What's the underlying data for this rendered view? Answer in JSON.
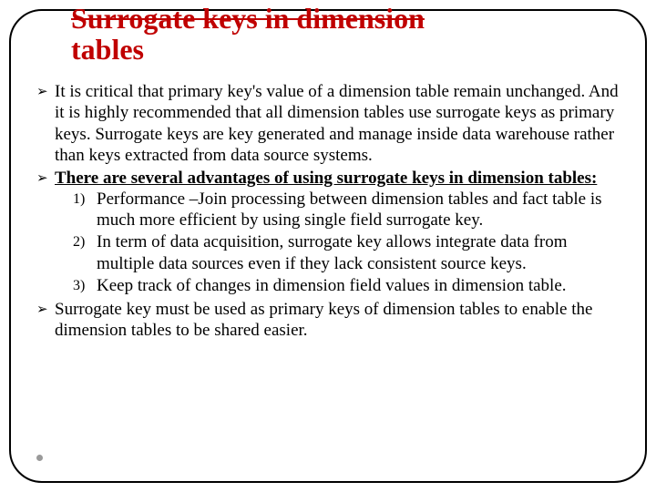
{
  "colors": {
    "title": "#c00000",
    "text": "#000000",
    "border": "#000000",
    "background": "#ffffff",
    "dot": "#9a9a9a"
  },
  "typography": {
    "title_fontsize": 32,
    "body_fontsize": 19,
    "font_family": "Times New Roman"
  },
  "title": {
    "line1": "Surrogate keys in dimension",
    "line2": "tables"
  },
  "bullets": [
    {
      "marker": "➢",
      "text": "It is critical that primary key's value of a dimension table remain unchanged. And it is highly recommended that all dimension tables use surrogate keys as primary keys. Surrogate keys are key generated and manage inside data warehouse rather than keys extracted from data source systems."
    },
    {
      "marker": "➢",
      "text": "There are several advantages of using surrogate keys in dimension tables:",
      "bold_underline": true,
      "numbered": [
        {
          "n": "1)",
          "text": "Performance –Join processing between dimension tables and fact table is much more efficient by using single field surrogate key."
        },
        {
          "n": "2)",
          "text": "In term of data acquisition, surrogate key allows integrate data from multiple data sources even if they lack consistent source keys."
        },
        {
          "n": "3)",
          "text": "Keep track of changes in dimension field values in dimension table."
        }
      ]
    },
    {
      "marker": "➢",
      "text": "Surrogate key must be used as primary keys of dimension tables to enable the dimension tables to be shared easier."
    }
  ]
}
